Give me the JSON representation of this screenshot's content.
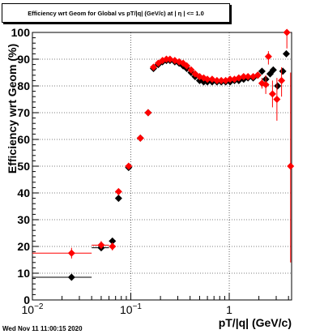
{
  "chart_data": {
    "type": "scatter",
    "title": "Efficiency wrt Geom for Global vs pT/|q| (GeV/c) at | η | <= 1.0",
    "xlabel": "pT/|q| (GeV/c)",
    "ylabel": "Efficiency wrt Geom (%)",
    "xscale": "log",
    "xlim": [
      0.01,
      4.3
    ],
    "ylim": [
      0,
      100
    ],
    "grid": true,
    "x_tick_labels": [
      {
        "value": 0.01,
        "base": "10",
        "exp": "−2"
      },
      {
        "value": 0.1,
        "base": "10",
        "exp": "−1"
      },
      {
        "value": 1,
        "base": "1",
        "exp": ""
      }
    ],
    "y_ticks": [
      0,
      10,
      20,
      30,
      40,
      50,
      60,
      70,
      80,
      90,
      100
    ],
    "series": [
      {
        "color": "#000000",
        "points": [
          {
            "x": 0.025,
            "y": 8.5,
            "xlo": 0.01,
            "xhi": 0.04
          },
          {
            "x": 0.05,
            "y": 19.5,
            "xlo": 0.04,
            "xhi": 0.06
          },
          {
            "x": 0.065,
            "y": 22,
            "xlo": 0.06,
            "xhi": 0.07
          },
          {
            "x": 0.075,
            "y": 38
          },
          {
            "x": 0.095,
            "y": 49.5,
            "xlo": 0.09,
            "xhi": 0.1
          },
          {
            "x": 0.125,
            "y": 60.5
          },
          {
            "x": 0.15,
            "y": 70
          },
          {
            "x": 0.17,
            "y": 86.5
          },
          {
            "x": 0.19,
            "y": 88
          },
          {
            "x": 0.21,
            "y": 89
          },
          {
            "x": 0.23,
            "y": 89.5
          },
          {
            "x": 0.25,
            "y": 89.5
          },
          {
            "x": 0.28,
            "y": 89
          },
          {
            "x": 0.31,
            "y": 88.5
          },
          {
            "x": 0.34,
            "y": 87.5
          },
          {
            "x": 0.37,
            "y": 86.5
          },
          {
            "x": 0.41,
            "y": 85
          },
          {
            "x": 0.45,
            "y": 83.5
          },
          {
            "x": 0.5,
            "y": 82
          },
          {
            "x": 0.55,
            "y": 81.5
          },
          {
            "x": 0.6,
            "y": 81.5
          },
          {
            "x": 0.67,
            "y": 81.5
          },
          {
            "x": 0.75,
            "y": 81.5
          },
          {
            "x": 0.83,
            "y": 81.5
          },
          {
            "x": 0.92,
            "y": 81.5
          },
          {
            "x": 1.02,
            "y": 81.5
          },
          {
            "x": 1.13,
            "y": 82
          },
          {
            "x": 1.25,
            "y": 82
          },
          {
            "x": 1.4,
            "y": 82.5
          },
          {
            "x": 1.55,
            "y": 83
          },
          {
            "x": 1.75,
            "y": 83
          },
          {
            "x": 1.95,
            "y": 84
          },
          {
            "x": 2.15,
            "y": 85.5
          },
          {
            "x": 2.35,
            "y": 82.5
          },
          {
            "x": 2.6,
            "y": 84.5
          },
          {
            "x": 2.8,
            "y": 86
          },
          {
            "x": 3.1,
            "y": 80
          },
          {
            "x": 3.5,
            "y": 85.5
          },
          {
            "x": 3.8,
            "y": 92
          }
        ]
      },
      {
        "color": "#ff0000",
        "points": [
          {
            "x": 0.025,
            "y": 17.5,
            "xlo": 0.01,
            "xhi": 0.04,
            "ylo": 15.5,
            "yhi": 19.5
          },
          {
            "x": 0.05,
            "y": 20.5,
            "xlo": 0.04,
            "xhi": 0.06,
            "ylo": 19,
            "yhi": 22
          },
          {
            "x": 0.065,
            "y": 20,
            "xlo": 0.06,
            "xhi": 0.07,
            "ylo": 18.5,
            "yhi": 21.5
          },
          {
            "x": 0.075,
            "y": 40.5
          },
          {
            "x": 0.095,
            "y": 50,
            "xlo": 0.09,
            "xhi": 0.1
          },
          {
            "x": 0.125,
            "y": 60.5
          },
          {
            "x": 0.15,
            "y": 70
          },
          {
            "x": 0.17,
            "y": 87
          },
          {
            "x": 0.19,
            "y": 88.5
          },
          {
            "x": 0.21,
            "y": 89.5
          },
          {
            "x": 0.23,
            "y": 90
          },
          {
            "x": 0.25,
            "y": 90
          },
          {
            "x": 0.28,
            "y": 89.5
          },
          {
            "x": 0.31,
            "y": 89
          },
          {
            "x": 0.34,
            "y": 88.5
          },
          {
            "x": 0.37,
            "y": 87.5
          },
          {
            "x": 0.41,
            "y": 86
          },
          {
            "x": 0.45,
            "y": 84.5
          },
          {
            "x": 0.5,
            "y": 83.5
          },
          {
            "x": 0.55,
            "y": 83
          },
          {
            "x": 0.6,
            "y": 82.5
          },
          {
            "x": 0.67,
            "y": 82.5
          },
          {
            "x": 0.75,
            "y": 82
          },
          {
            "x": 0.83,
            "y": 82
          },
          {
            "x": 0.92,
            "y": 82
          },
          {
            "x": 1.02,
            "y": 82.5
          },
          {
            "x": 1.13,
            "y": 82.5
          },
          {
            "x": 1.25,
            "y": 83
          },
          {
            "x": 1.4,
            "y": 83.5
          },
          {
            "x": 1.55,
            "y": 83.5
          },
          {
            "x": 1.75,
            "y": 83.5
          },
          {
            "x": 1.95,
            "y": 84
          },
          {
            "x": 2.15,
            "y": 81,
            "ylo": 79,
            "yhi": 83
          },
          {
            "x": 2.35,
            "y": 80.5,
            "ylo": 77,
            "yhi": 84
          },
          {
            "x": 2.5,
            "y": 91,
            "ylo": 88,
            "yhi": 93
          },
          {
            "x": 2.75,
            "y": 77,
            "ylo": 72,
            "yhi": 82
          },
          {
            "x": 3.05,
            "y": 75,
            "ylo": 67,
            "yhi": 83
          },
          {
            "x": 3.4,
            "y": 82,
            "ylo": 76,
            "yhi": 87
          },
          {
            "x": 3.85,
            "y": 100,
            "ylo": 94,
            "yhi": 100
          },
          {
            "x": 4.2,
            "y": 50,
            "ylo": 14,
            "yhi": 85
          }
        ]
      }
    ]
  },
  "footer": {
    "timestamp": "Wed Nov 11 11:00:15 2020"
  }
}
